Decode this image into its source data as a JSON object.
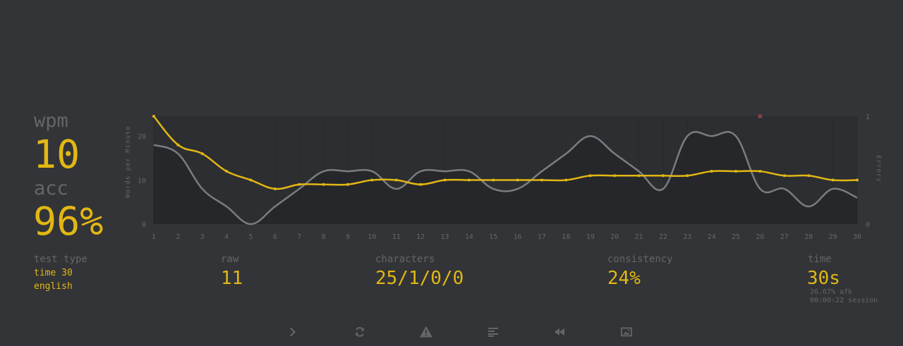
{
  "summary": {
    "wpm_label": "wpm",
    "wpm_value": "10",
    "acc_label": "acc",
    "acc_value": "96%"
  },
  "stats": {
    "test_type_label": "test type",
    "test_type_mode": "time 30",
    "test_type_language": "english",
    "raw_label": "raw",
    "raw_value": "11",
    "characters_label": "characters",
    "characters_value": "25/1/0/0",
    "consistency_label": "consistency",
    "consistency_value": "24%",
    "time_label": "time",
    "time_value": "30s",
    "afk_text": "26.67% afk",
    "session_text": "00:00:22 session"
  },
  "bottom_bar": {
    "icons": [
      "next-test-icon",
      "restart-icon",
      "warning-icon",
      "words-history-icon",
      "replay-icon",
      "screenshot-icon"
    ]
  },
  "colors": {
    "background": "#323437",
    "main": "#e2b714",
    "sub": "#646669",
    "raw_line": "#7a7c80",
    "error": "#ca4754"
  },
  "chart_data": {
    "type": "line",
    "x": [
      1,
      2,
      3,
      4,
      5,
      6,
      7,
      8,
      9,
      10,
      11,
      12,
      13,
      14,
      15,
      16,
      17,
      18,
      19,
      20,
      21,
      22,
      23,
      24,
      25,
      26,
      27,
      28,
      29,
      30
    ],
    "ylabel": "Words per Minute",
    "y2label": "Errors",
    "ylim": [
      0,
      24.5
    ],
    "y2lim": [
      0,
      1
    ],
    "yticks": [
      0,
      10,
      20
    ],
    "y2ticks": [
      0,
      1
    ],
    "grid": "vertical",
    "legend": "none",
    "series": [
      {
        "values": [
          24.5,
          18,
          16,
          12,
          10,
          8,
          9,
          9,
          9,
          10,
          10,
          9,
          10,
          10,
          10,
          10,
          10,
          10,
          11,
          11,
          11,
          11,
          11,
          12,
          12,
          12,
          11,
          11,
          10,
          10
        ],
        "color": "#e2b714"
      },
      {
        "values": [
          18,
          16,
          8,
          4,
          0,
          4,
          8,
          12,
          12,
          12,
          8,
          12,
          12,
          12,
          8,
          8,
          12,
          16,
          20,
          16,
          12,
          8,
          20,
          20,
          20,
          8,
          8,
          4,
          8,
          6
        ],
        "color": "#7a7c80"
      },
      {
        "axis": "right",
        "points": [
          [
            26,
            1
          ]
        ],
        "marker": "x",
        "color": "#ca4754"
      }
    ]
  }
}
